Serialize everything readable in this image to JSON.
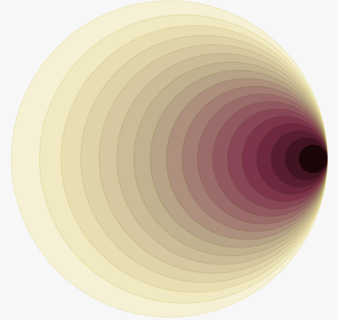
{
  "figure": {
    "background": "#f7f7f7",
    "ring_count": 18,
    "color_outer": "#f5ecb8",
    "color_inner": "#1a0508",
    "stroke_outer": "#ded27a",
    "stroke_inner": "#3a1018"
  }
}
